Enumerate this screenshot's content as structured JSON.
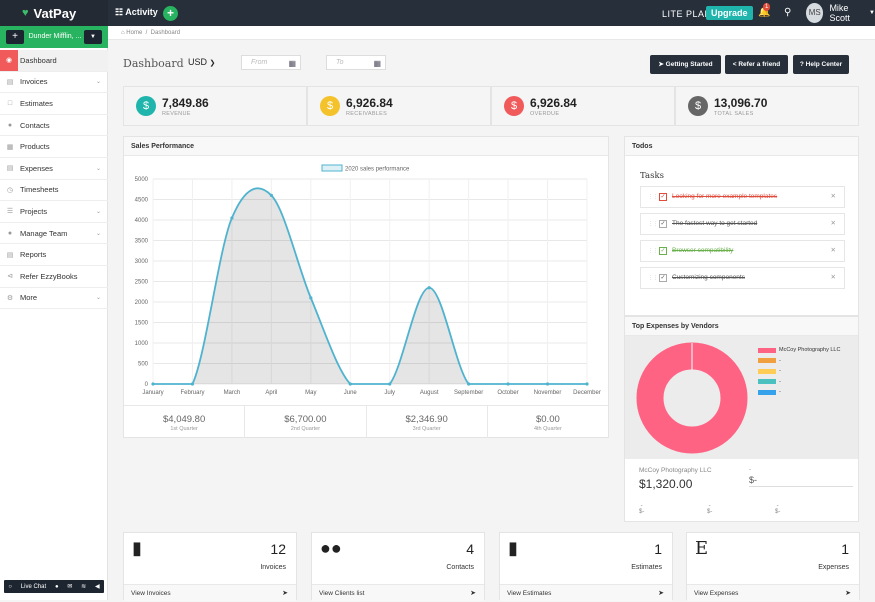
{
  "app": {
    "name": "VatPay"
  },
  "topbar": {
    "activity": "Activity",
    "plan": "LITE PLAN",
    "plan_sep": "|",
    "upgrade": "Upgrade",
    "notifications": "1",
    "user_initials": "MS",
    "user_name": "Mike Scott"
  },
  "sidebar": {
    "company": "Dunder Mifflin, ...",
    "items": [
      {
        "label": "Dashboard"
      },
      {
        "label": "Invoices"
      },
      {
        "label": "Estimates"
      },
      {
        "label": "Contacts"
      },
      {
        "label": "Products"
      },
      {
        "label": "Expenses"
      },
      {
        "label": "Timesheets"
      },
      {
        "label": "Projects"
      },
      {
        "label": "Manage Team"
      },
      {
        "label": "Reports"
      },
      {
        "label": "Refer EzzyBooks"
      },
      {
        "label": "More"
      }
    ],
    "live_chat": "Live Chat"
  },
  "breadcrumb": {
    "home": "Home",
    "sep": "/",
    "current": "Dashboard"
  },
  "header": {
    "title": "Dashboard",
    "currency": "USD",
    "from_placeholder": "From",
    "to_placeholder": "To",
    "btn_started": "Getting Started",
    "btn_refer": "Refer a friend",
    "btn_help": "Help Center"
  },
  "stats": [
    {
      "value": "7,849.86",
      "label": "REVENUE",
      "color": "#1fb5ad"
    },
    {
      "value": "6,926.84",
      "label": "RECEIVABLES",
      "color": "#f4c22b"
    },
    {
      "value": "6,926.84",
      "label": "OVERDUE",
      "color": "#f05a5a"
    },
    {
      "value": "13,096.70",
      "label": "TOTAL SALES",
      "color": "#666666"
    }
  ],
  "sales": {
    "title": "Sales Performance"
  },
  "chart_data": {
    "type": "line",
    "title": "",
    "legend": "2020 sales performance",
    "categories": [
      "January",
      "February",
      "March",
      "April",
      "May",
      "June",
      "July",
      "August",
      "September",
      "October",
      "November",
      "December"
    ],
    "values": [
      0,
      0,
      4049.8,
      4600,
      2100,
      0,
      0,
      2346.9,
      0,
      0,
      0,
      0
    ],
    "ylim": [
      0,
      5000
    ],
    "yticks": [
      "0",
      "500",
      "1000",
      "1500",
      "2000",
      "2500",
      "3000",
      "3500",
      "4000",
      "4500",
      "5000"
    ],
    "color": "#4fb3cf"
  },
  "quarters": [
    {
      "value": "$4,049.80",
      "label": "1st Quarter"
    },
    {
      "value": "$6,700.00",
      "label": "2nd Quarter"
    },
    {
      "value": "$2,346.90",
      "label": "3rd Quarter"
    },
    {
      "value": "$0.00",
      "label": "4th Quarter"
    }
  ],
  "todos": {
    "title": "Todos",
    "heading": "Tasks",
    "items": [
      {
        "text": "Looking for more example templates",
        "color": "#e14b3b"
      },
      {
        "text": "The fastest way to get started",
        "color": "#555555"
      },
      {
        "text": "Browser compatibility",
        "color": "#6ab04c"
      },
      {
        "text": "Customizing components",
        "color": "#555555"
      }
    ]
  },
  "vendors": {
    "title": "Top Expenses by Vendors",
    "legend": [
      {
        "name": "McCoy Photography LLC",
        "color": "#ff6384"
      },
      {
        "name": "-",
        "color": "#f0a040"
      },
      {
        "name": "-",
        "color": "#ffcd56"
      },
      {
        "name": "-",
        "color": "#4bc0c0"
      },
      {
        "name": "-",
        "color": "#36a2eb"
      }
    ],
    "top_name": "McCoy Photography LLC",
    "top_amount": "$1,320.00",
    "second_name": "-",
    "second_amount": "$-",
    "small_values": [
      "-",
      "-",
      "-"
    ],
    "small_amounts": [
      "$-",
      "$-",
      "$-"
    ]
  },
  "cards": [
    {
      "count": "12",
      "label": "Invoices",
      "link": "View Invoices"
    },
    {
      "count": "4",
      "label": "Contacts",
      "link": "View Clients list"
    },
    {
      "count": "1",
      "label": "Estimates",
      "link": "View Estimates"
    },
    {
      "count": "1",
      "label": "Expenses",
      "link": "View Expenses",
      "icon_letter": "E"
    }
  ]
}
